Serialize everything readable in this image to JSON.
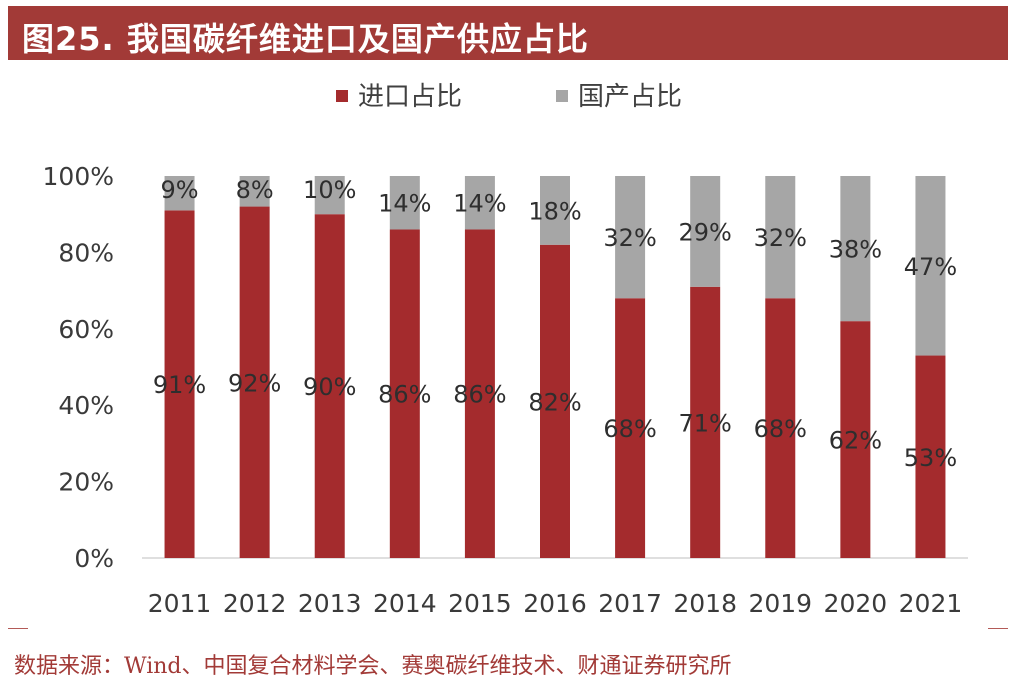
{
  "title": "图25. 我国碳纤维进口及国产供应占比",
  "source": "数据来源：Wind、中国复合材料学会、赛奥碳纤维技术、财通证券研究所",
  "colors": {
    "title_bg": "#a23a37",
    "import": "#a42b2d",
    "domestic": "#a6a6a6",
    "source": "#a23a37"
  },
  "chart_data": {
    "type": "bar",
    "stacked": true,
    "categories": [
      "2011",
      "2012",
      "2013",
      "2014",
      "2015",
      "2016",
      "2017",
      "2018",
      "2019",
      "2020",
      "2021"
    ],
    "series": [
      {
        "name": "进口占比",
        "color": "#a42b2d",
        "values": [
          91,
          92,
          90,
          86,
          86,
          82,
          68,
          71,
          68,
          62,
          53
        ],
        "labels": [
          "91%",
          "92%",
          "90%",
          "86%",
          "86%",
          "82%",
          "68%",
          "71%",
          "68%",
          "62%",
          "53%"
        ]
      },
      {
        "name": "国产占比",
        "color": "#a6a6a6",
        "values": [
          9,
          8,
          10,
          14,
          14,
          18,
          32,
          29,
          32,
          38,
          47
        ],
        "labels": [
          "9%",
          "8%",
          "10%",
          "14%",
          "14%",
          "18%",
          "32%",
          "29%",
          "32%",
          "38%",
          "47%"
        ]
      }
    ],
    "yticks": [
      "0%",
      "20%",
      "40%",
      "60%",
      "80%",
      "100%"
    ],
    "ylim": [
      0,
      100
    ],
    "legend": "top",
    "grid": false
  }
}
